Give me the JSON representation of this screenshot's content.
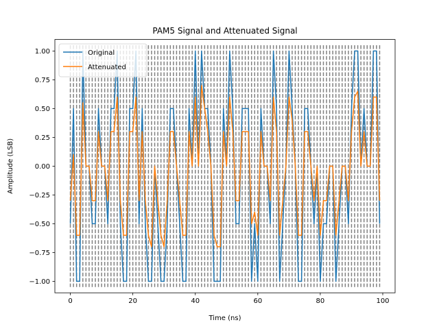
{
  "chart_data": {
    "type": "line",
    "title": "PAM5 Signal and Attenuated Signal",
    "xlabel": "Time (ns)",
    "ylabel": "Amplitude (LSB)",
    "xlim": [
      -4.95,
      103.95
    ],
    "ylim": [
      -1.1,
      1.1
    ],
    "xticks": [
      0,
      20,
      40,
      60,
      80,
      100
    ],
    "yticks": [
      -1.0,
      -0.75,
      -0.5,
      -0.25,
      0.0,
      0.25,
      0.5,
      0.75,
      1.0
    ],
    "ytick_labels": [
      "−1.00",
      "−0.75",
      "−0.50",
      "−0.25",
      "0.00",
      "0.25",
      "0.50",
      "0.75",
      "1.00"
    ],
    "legend_position": "top-left",
    "grid": false,
    "symbol_boundaries": {
      "x": [
        0,
        1,
        2,
        3,
        4,
        5,
        6,
        7,
        8,
        9,
        10,
        11,
        12,
        13,
        14,
        15,
        16,
        17,
        18,
        19,
        20,
        21,
        22,
        23,
        24,
        25,
        26,
        27,
        28,
        29,
        30,
        31,
        32,
        33,
        34,
        35,
        36,
        37,
        38,
        39,
        40,
        41,
        42,
        43,
        44,
        45,
        46,
        47,
        48,
        49,
        50,
        51,
        52,
        53,
        54,
        55,
        56,
        57,
        58,
        59,
        60,
        61,
        62,
        63,
        64,
        65,
        66,
        67,
        68,
        69,
        70,
        71,
        72,
        73,
        74,
        75,
        76,
        77,
        78,
        79,
        80,
        81,
        82,
        83,
        84,
        85,
        86,
        87,
        88,
        89,
        90,
        91,
        92,
        93,
        94,
        95,
        96,
        97,
        98,
        99
      ],
      "ymin": -1.05,
      "ymax": 1.05,
      "color": "#808080",
      "style": "dashed"
    },
    "series": [
      {
        "name": "Original",
        "color": "#1f77b4",
        "x": [
          0,
          1,
          2,
          3,
          4,
          5,
          6,
          7,
          8,
          9,
          10,
          11,
          12,
          13,
          14,
          15,
          16,
          17,
          18,
          19,
          20,
          21,
          22,
          23,
          24,
          25,
          26,
          27,
          28,
          29,
          30,
          31,
          32,
          33,
          34,
          35,
          36,
          37,
          38,
          39,
          40,
          41,
          42,
          43,
          44,
          45,
          46,
          47,
          48,
          49,
          50,
          51,
          52,
          53,
          54,
          55,
          56,
          57,
          58,
          59,
          60,
          61,
          62,
          63,
          64,
          65,
          66,
          67,
          68,
          69,
          70,
          71,
          72,
          73,
          74,
          75,
          76,
          77,
          78,
          79,
          80,
          81,
          82,
          83,
          84,
          85,
          86,
          87,
          88,
          89,
          90,
          91,
          92,
          93,
          94,
          95,
          96,
          97,
          98,
          99
        ],
        "values": [
          -0.5,
          0.5,
          -1.0,
          -1.0,
          1.0,
          0.0,
          0.0,
          -0.5,
          -0.5,
          0.5,
          0.0,
          0.0,
          -0.5,
          0.5,
          0.5,
          1.0,
          -0.5,
          -1.0,
          -1.0,
          0.5,
          0.5,
          1.0,
          -0.5,
          0.5,
          -0.5,
          -1.0,
          -1.0,
          0.0,
          -0.5,
          -1.0,
          -1.0,
          -0.5,
          0.5,
          0.5,
          0.0,
          -0.5,
          -1.0,
          -1.0,
          0.5,
          0.0,
          1.0,
          0.0,
          1.0,
          0.5,
          0.5,
          0.0,
          -1.0,
          -1.0,
          -1.0,
          0.5,
          0.0,
          1.0,
          0.5,
          -0.5,
          -0.5,
          0.5,
          0.5,
          0.5,
          -1.0,
          -0.5,
          -1.0,
          0.5,
          0.0,
          0.0,
          -0.5,
          1.0,
          0.5,
          -1.0,
          -0.5,
          0.0,
          1.0,
          0.5,
          0.0,
          -1.0,
          -1.0,
          0.5,
          0.5,
          0.0,
          -0.5,
          0.0,
          -1.0,
          -0.5,
          -0.5,
          0.0,
          0.0,
          -1.0,
          -0.5,
          0.0,
          0.0,
          -0.5,
          0.5,
          1.0,
          1.0,
          0.0,
          0.5,
          0.0,
          0.0,
          1.0,
          1.0,
          -0.5
        ]
      },
      {
        "name": "Attenuated",
        "color": "#ff7f0e",
        "x": [
          0,
          1,
          2,
          3,
          4,
          5,
          6,
          7,
          8,
          9,
          10,
          11,
          12,
          13,
          14,
          15,
          16,
          17,
          18,
          19,
          20,
          21,
          22,
          23,
          24,
          25,
          26,
          27,
          28,
          29,
          30,
          31,
          32,
          33,
          34,
          35,
          36,
          37,
          38,
          39,
          40,
          41,
          42,
          43,
          44,
          45,
          46,
          47,
          48,
          49,
          50,
          51,
          52,
          53,
          54,
          55,
          56,
          57,
          58,
          59,
          60,
          61,
          62,
          63,
          64,
          65,
          66,
          67,
          68,
          69,
          70,
          71,
          72,
          73,
          74,
          75,
          76,
          77,
          78,
          79,
          80,
          81,
          82,
          83,
          84,
          85,
          86,
          87,
          88,
          89,
          90,
          91,
          92,
          93,
          94,
          95,
          96,
          97,
          98,
          99
        ],
        "values": [
          -0.3,
          0.1,
          -0.6,
          -0.6,
          0.55,
          0.0,
          0.0,
          -0.3,
          -0.3,
          0.3,
          0.0,
          0.0,
          -0.3,
          0.3,
          0.3,
          0.6,
          -0.3,
          -0.6,
          -0.6,
          0.3,
          0.3,
          0.6,
          -0.3,
          0.3,
          -0.3,
          -0.6,
          -0.7,
          0.0,
          -0.3,
          -0.6,
          -0.7,
          -0.3,
          0.3,
          0.3,
          0.0,
          -0.3,
          -0.6,
          -0.6,
          0.3,
          0.0,
          0.6,
          0.0,
          0.7,
          0.5,
          0.3,
          0.0,
          -0.6,
          -0.7,
          -0.7,
          0.3,
          0.0,
          0.6,
          0.3,
          -0.3,
          -0.3,
          0.3,
          0.3,
          0.3,
          -0.5,
          -0.4,
          -0.6,
          0.3,
          0.0,
          0.0,
          -0.3,
          0.6,
          0.3,
          -0.6,
          -0.3,
          0.0,
          0.6,
          0.4,
          0.0,
          -0.6,
          -0.6,
          0.3,
          0.3,
          0.0,
          -0.3,
          0.0,
          -0.6,
          -0.3,
          -0.3,
          0.0,
          0.0,
          -0.6,
          -0.3,
          0.0,
          0.0,
          -0.3,
          0.3,
          0.6,
          0.65,
          0.0,
          0.3,
          0.0,
          0.0,
          0.6,
          0.6,
          -0.3
        ]
      }
    ]
  }
}
